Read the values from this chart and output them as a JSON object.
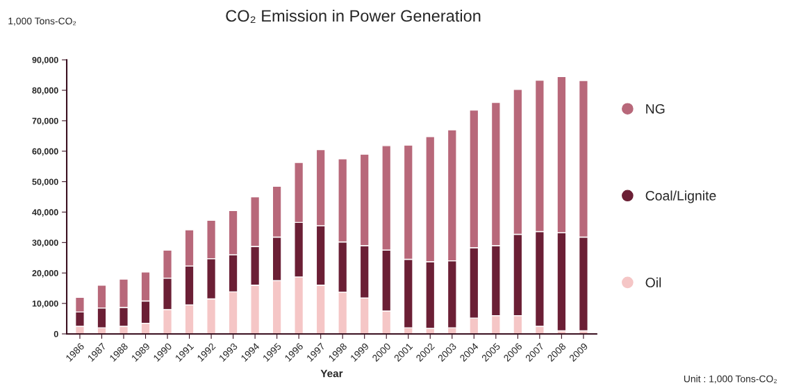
{
  "chart_data": {
    "type": "bar",
    "title": "CO₂ Emission in Power Generation",
    "xlabel": "Year",
    "ylabel": "1,000 Tons-CO₂",
    "annotations": [
      "Unit : 1,000 Tons-CO₂"
    ],
    "categories": [
      "1986",
      "1987",
      "1988",
      "1989",
      "1990",
      "1991",
      "1992",
      "1993",
      "1994",
      "1995",
      "1996",
      "1997",
      "1998",
      "1999",
      "2000",
      "2001",
      "2002",
      "2003",
      "2004",
      "2005",
      "2006",
      "2007",
      "2008",
      "2009"
    ],
    "stacked": true,
    "series": [
      {
        "name": "Oil",
        "color": "#f5c6c6",
        "values": [
          2500,
          2000,
          2500,
          3500,
          8000,
          9500,
          11500,
          13800,
          16000,
          17500,
          18700,
          16000,
          13700,
          11800,
          7500,
          2000,
          1800,
          2000,
          5200,
          6000,
          6000,
          2500,
          1000,
          1000
        ]
      },
      {
        "name": "Coal/Lignite",
        "color": "#6b1f35",
        "values": [
          4700,
          6500,
          6200,
          7300,
          10300,
          12800,
          13200,
          12200,
          12700,
          14300,
          17900,
          19500,
          16500,
          17200,
          20000,
          22500,
          21900,
          22000,
          23100,
          23000,
          26700,
          31100,
          32200,
          30800
        ]
      },
      {
        "name": "NG",
        "color": "#b8687a",
        "values": [
          4800,
          7500,
          9300,
          9500,
          9200,
          11900,
          12600,
          14500,
          16300,
          16700,
          19700,
          25000,
          27300,
          30000,
          34300,
          37500,
          41100,
          43000,
          45200,
          47000,
          47600,
          49700,
          51300,
          51400
        ]
      }
    ],
    "ylim": [
      0,
      90000
    ],
    "yticks": [
      {
        "value": 0,
        "label": "0"
      },
      {
        "value": 10000,
        "label": "10,000"
      },
      {
        "value": 20000,
        "label": "20,000"
      },
      {
        "value": 30000,
        "label": "30,000"
      },
      {
        "value": 40000,
        "label": "40,000"
      },
      {
        "value": 50000,
        "label": "50,000"
      },
      {
        "value": 60000,
        "label": "60,000"
      },
      {
        "value": 70000,
        "label": "70,000"
      },
      {
        "value": 80000,
        "label": "80,000"
      },
      {
        "value": 90000,
        "label": "90,000"
      }
    ],
    "grid": false,
    "legend": "right"
  }
}
